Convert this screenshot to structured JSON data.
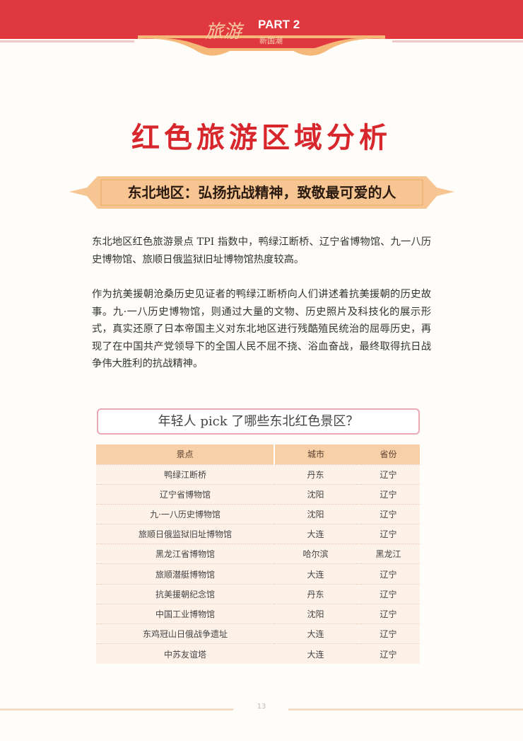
{
  "header": {
    "series_cn": "旅游",
    "part": "PART 2",
    "subtitle": "新国潮",
    "colors": {
      "red": "#e0383f",
      "gold": "#f5b878"
    }
  },
  "title": "红色旅游区域分析",
  "section_banner": "东北地区：弘扬抗战精神，致敬最可爱的人",
  "paragraphs": [
    "东北地区红色旅游景点 TPI 指数中，鸭绿江断桥、辽宁省博物馆、九一八历史博物馆、旅顺日俄监狱旧址博物馆热度较高。",
    "作为抗美援朝沧桑历史见证者的鸭绿江断桥向人们讲述着抗美援朝的历史故事。九·一八历史博物馆，则通过大量的文物、历史照片及科技化的展示形式，真实还原了日本帝国主义对东北地区进行残酷殖民统治的屈辱历史，再现了在中国共产党领导下的全国人民不屈不挠、浴血奋战，最终取得抗日战争伟大胜利的抗战精神。"
  ],
  "table_title": "年轻人 pick 了哪些东北红色景区？",
  "table": {
    "headers": [
      "景点",
      "城市",
      "省份"
    ],
    "rows": [
      [
        "鸭绿江断桥",
        "丹东",
        "辽宁"
      ],
      [
        "辽宁省博物馆",
        "沈阳",
        "辽宁"
      ],
      [
        "九·一八历史博物馆",
        "沈阳",
        "辽宁"
      ],
      [
        "旅顺日俄监狱旧址博物馆",
        "大连",
        "辽宁"
      ],
      [
        "黑龙江省博物馆",
        "哈尔滨",
        "黑龙江"
      ],
      [
        "旅顺潜艇博物馆",
        "大连",
        "辽宁"
      ],
      [
        "抗美援朝纪念馆",
        "丹东",
        "辽宁"
      ],
      [
        "中国工业博物馆",
        "沈阳",
        "辽宁"
      ],
      [
        "东鸡冠山日俄战争遗址",
        "大连",
        "辽宁"
      ],
      [
        "中苏友谊塔",
        "大连",
        "辽宁"
      ]
    ]
  },
  "page_number": "13"
}
